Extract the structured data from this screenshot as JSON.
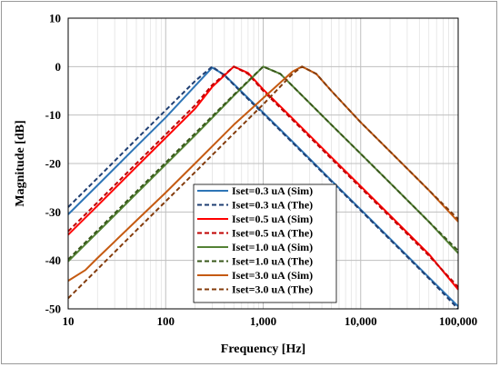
{
  "chart_data": {
    "type": "line",
    "xlabel": "Frequency [Hz]",
    "ylabel": "Magnitude [dB]",
    "xscale": "log",
    "xlim": [
      10,
      100000
    ],
    "ylim": [
      -50,
      10
    ],
    "grid": true,
    "legend_position": "bottom-center",
    "x_ticks": [
      "10",
      "100",
      "1,000",
      "10,000",
      "100,000"
    ],
    "y_ticks": [
      "10",
      "0",
      "-10",
      "-20",
      "-30",
      "-40",
      "-50"
    ],
    "series": [
      {
        "name": "Iset=0.3 uA (Sim)",
        "color": "#2e75b6",
        "dash": "solid",
        "points": [
          [
            10,
            -30.5
          ],
          [
            20,
            -24.5
          ],
          [
            50,
            -16.5
          ],
          [
            100,
            -10.5
          ],
          [
            200,
            -4
          ],
          [
            300,
            -0.2
          ],
          [
            400,
            -1.7
          ],
          [
            700,
            -6.5
          ],
          [
            1000,
            -9.5
          ],
          [
            2000,
            -15.5
          ],
          [
            5000,
            -23.5
          ],
          [
            10000,
            -29.5
          ],
          [
            20000,
            -35.5
          ],
          [
            50000,
            -43.5
          ],
          [
            100000,
            -49.5
          ]
        ]
      },
      {
        "name": "Iset=0.3 uA (The)",
        "color": "#1f3f73",
        "dash": "dashed",
        "points": [
          [
            10,
            -29
          ],
          [
            20,
            -23
          ],
          [
            50,
            -15
          ],
          [
            100,
            -9
          ],
          [
            200,
            -3
          ],
          [
            300,
            0
          ],
          [
            400,
            -1.8
          ],
          [
            700,
            -6.7
          ],
          [
            1000,
            -9.7
          ],
          [
            2000,
            -15.7
          ],
          [
            5000,
            -23.7
          ],
          [
            10000,
            -29.7
          ],
          [
            20000,
            -35.7
          ],
          [
            50000,
            -43.7
          ],
          [
            100000,
            -50
          ]
        ]
      },
      {
        "name": "Iset=0.5 uA (Sim)",
        "color": "#ff0000",
        "dash": "solid",
        "points": [
          [
            10,
            -34.7
          ],
          [
            20,
            -28.7
          ],
          [
            50,
            -20.7
          ],
          [
            100,
            -14.7
          ],
          [
            200,
            -8.7
          ],
          [
            300,
            -4.2
          ],
          [
            500,
            0
          ],
          [
            700,
            -1.3
          ],
          [
            1000,
            -4.7
          ],
          [
            2000,
            -10.7
          ],
          [
            5000,
            -18.7
          ],
          [
            10000,
            -24.7
          ],
          [
            20000,
            -30.7
          ],
          [
            50000,
            -38.7
          ],
          [
            100000,
            -46
          ]
        ]
      },
      {
        "name": "Iset=0.5 uA (The)",
        "color": "#c00000",
        "dash": "dashed",
        "points": [
          [
            10,
            -34
          ],
          [
            20,
            -28
          ],
          [
            50,
            -20
          ],
          [
            100,
            -14
          ],
          [
            200,
            -8
          ],
          [
            300,
            -3.8
          ],
          [
            500,
            0
          ],
          [
            700,
            -1.5
          ],
          [
            1000,
            -5
          ],
          [
            2000,
            -11
          ],
          [
            5000,
            -19
          ],
          [
            10000,
            -25
          ],
          [
            20000,
            -31
          ],
          [
            50000,
            -39
          ],
          [
            100000,
            -45.5
          ]
        ]
      },
      {
        "name": "Iset=1.0 uA (Sim)",
        "color": "#548235",
        "dash": "solid",
        "points": [
          [
            10,
            -40.2
          ],
          [
            20,
            -34.2
          ],
          [
            50,
            -26.2
          ],
          [
            100,
            -20.2
          ],
          [
            200,
            -14.2
          ],
          [
            500,
            -6
          ],
          [
            1000,
            0
          ],
          [
            1500,
            -1.5
          ],
          [
            2000,
            -4
          ],
          [
            5000,
            -12
          ],
          [
            10000,
            -18
          ],
          [
            20000,
            -24
          ],
          [
            50000,
            -32
          ],
          [
            100000,
            -38.5
          ]
        ]
      },
      {
        "name": "Iset=1.0 uA (The)",
        "color": "#38571a",
        "dash": "dashed",
        "points": [
          [
            10,
            -39.8
          ],
          [
            20,
            -33.8
          ],
          [
            50,
            -25.8
          ],
          [
            100,
            -19.8
          ],
          [
            200,
            -13.8
          ],
          [
            500,
            -5.8
          ],
          [
            1000,
            0
          ],
          [
            1500,
            -1.5
          ],
          [
            2000,
            -4
          ],
          [
            5000,
            -12
          ],
          [
            10000,
            -18
          ],
          [
            20000,
            -24
          ],
          [
            50000,
            -32
          ],
          [
            100000,
            -38
          ]
        ]
      },
      {
        "name": "Iset=3.0 uA (Sim)",
        "color": "#c55a11",
        "dash": "solid",
        "points": [
          [
            10,
            -44.2
          ],
          [
            15,
            -42
          ],
          [
            20,
            -39.5
          ],
          [
            50,
            -31.8
          ],
          [
            100,
            -26
          ],
          [
            200,
            -20
          ],
          [
            500,
            -12
          ],
          [
            1000,
            -6.5
          ],
          [
            2000,
            -1
          ],
          [
            2500,
            0
          ],
          [
            3500,
            -1.5
          ],
          [
            5000,
            -5
          ],
          [
            10000,
            -11.5
          ],
          [
            20000,
            -17.5
          ],
          [
            50000,
            -25.5
          ],
          [
            100000,
            -32
          ]
        ]
      },
      {
        "name": "Iset=3.0 uA (The)",
        "color": "#843c0c",
        "dash": "dashed",
        "points": [
          [
            10,
            -47.8
          ],
          [
            20,
            -41.8
          ],
          [
            50,
            -33.8
          ],
          [
            100,
            -27.8
          ],
          [
            200,
            -21.8
          ],
          [
            500,
            -13.8
          ],
          [
            1000,
            -7.8
          ],
          [
            2000,
            -1.5
          ],
          [
            2500,
            0
          ],
          [
            3500,
            -1.5
          ],
          [
            5000,
            -5
          ],
          [
            10000,
            -11.5
          ],
          [
            20000,
            -17.5
          ],
          [
            50000,
            -25.5
          ],
          [
            100000,
            -31.5
          ]
        ]
      }
    ]
  }
}
